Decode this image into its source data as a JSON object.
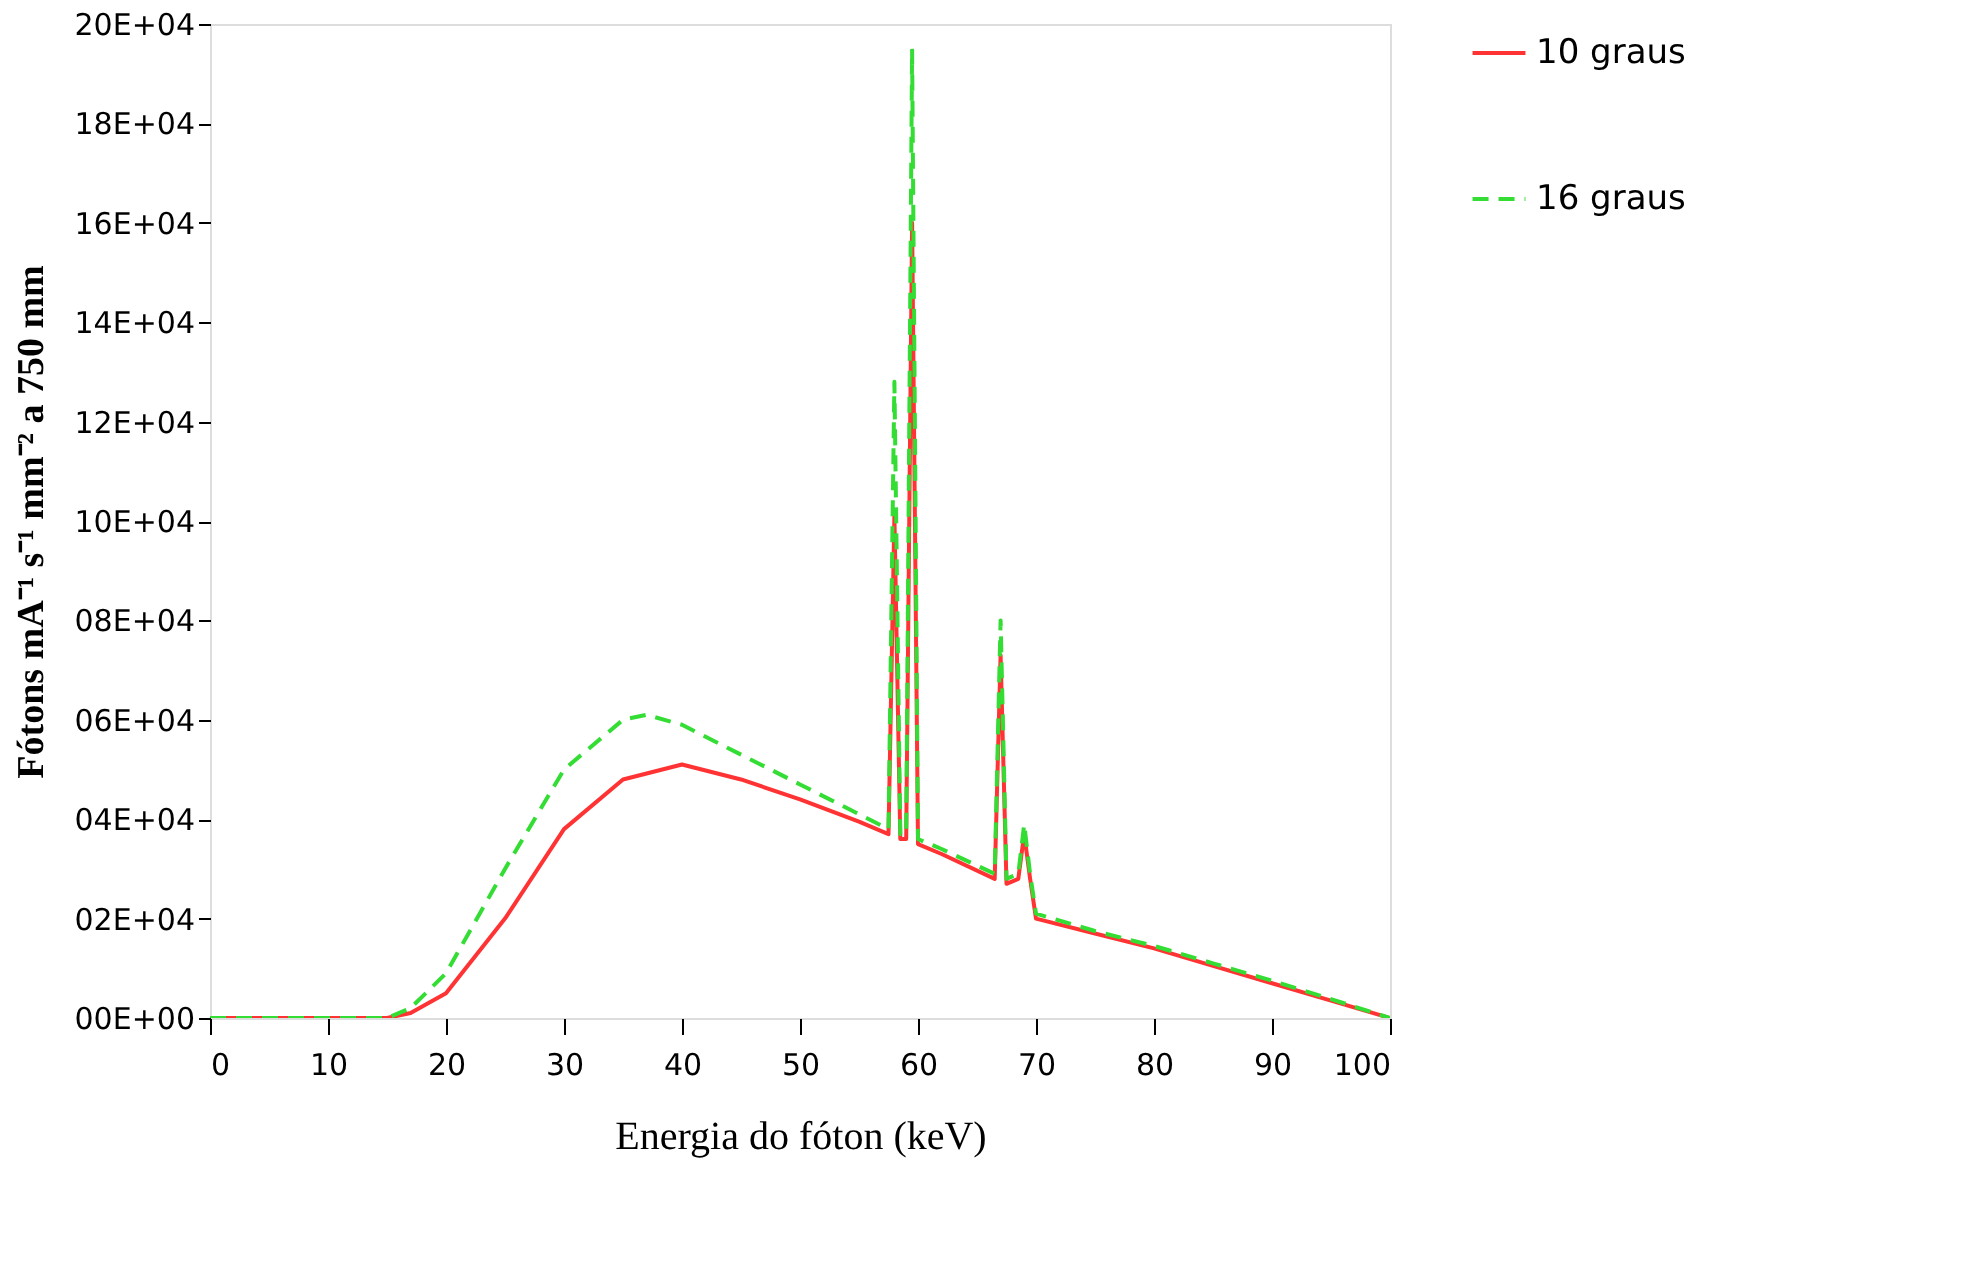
{
  "chart_data": {
    "type": "line",
    "xlabel": "Energia do fóton (keV)",
    "ylabel": "Fótons mA⁻¹ s⁻¹ mm⁻² a 750 mm",
    "xlim": [
      0,
      100
    ],
    "xticks": [
      0,
      10,
      20,
      30,
      40,
      50,
      60,
      70,
      80,
      90,
      100
    ],
    "ylim": [
      0,
      200000
    ],
    "yticks": [
      {
        "value": 0,
        "label": "00E+00"
      },
      {
        "value": 20000,
        "label": "02E+04"
      },
      {
        "value": 40000,
        "label": "04E+04"
      },
      {
        "value": 60000,
        "label": "06E+04"
      },
      {
        "value": 80000,
        "label": "08E+04"
      },
      {
        "value": 100000,
        "label": "10E+04"
      },
      {
        "value": 120000,
        "label": "12E+04"
      },
      {
        "value": 140000,
        "label": "14E+04"
      },
      {
        "value": 160000,
        "label": "16E+04"
      },
      {
        "value": 180000,
        "label": "18E+04"
      },
      {
        "value": 200000,
        "label": "20E+04"
      }
    ],
    "grid": false,
    "legend": "right",
    "series": [
      {
        "name": "10 graus",
        "color": "#ff3333",
        "line_style": "solid",
        "x": [
          0,
          10,
          15,
          17,
          20,
          25,
          30,
          35,
          40,
          45,
          50,
          55,
          57.5,
          58,
          58.5,
          59,
          59.5,
          60,
          62,
          66.5,
          67,
          67.5,
          68.5,
          69,
          69.5,
          70,
          75,
          80,
          85,
          90,
          95,
          100
        ],
        "values": [
          0,
          0,
          0,
          1000,
          5000,
          20000,
          38000,
          48000,
          51000,
          48000,
          44000,
          39500,
          37000,
          101000,
          36000,
          36000,
          160000,
          35000,
          33000,
          28000,
          73000,
          27000,
          28000,
          37000,
          28000,
          20000,
          17000,
          14000,
          10500,
          7000,
          3500,
          0
        ]
      },
      {
        "name": "16 graus",
        "color": "#33dd33",
        "line_style": "dashed",
        "x": [
          0,
          10,
          15,
          17,
          20,
          25,
          30,
          35,
          37,
          40,
          45,
          50,
          55,
          57.5,
          58,
          58.5,
          59,
          59.5,
          60,
          62,
          66.5,
          67,
          67.5,
          68.5,
          69,
          69.5,
          70,
          75,
          80,
          85,
          90,
          95,
          100
        ],
        "values": [
          0,
          0,
          0,
          2000,
          9000,
          30000,
          50000,
          60000,
          61000,
          59000,
          53000,
          47000,
          41000,
          38000,
          128000,
          37000,
          37000,
          195000,
          36000,
          34000,
          29000,
          80000,
          28000,
          29000,
          39000,
          29000,
          21000,
          17500,
          14500,
          11000,
          7500,
          3800,
          0
        ]
      }
    ]
  }
}
